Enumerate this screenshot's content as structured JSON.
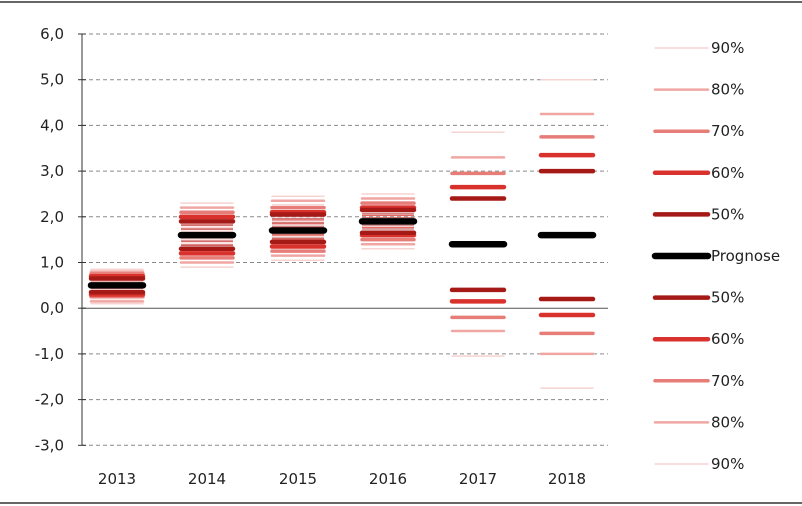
{
  "chart_data": {
    "type": "fan",
    "title": "",
    "xlabel": "",
    "ylabel": "",
    "categories": [
      "2013",
      "2014",
      "2015",
      "2016",
      "2017",
      "2018"
    ],
    "yticks": [
      "6,0",
      "5,0",
      "4,0",
      "3,0",
      "2,0",
      "1,0",
      "0,0",
      "-1,0",
      "-2,0",
      "-3,0"
    ],
    "ylim": [
      -3,
      6
    ],
    "grid": true,
    "legend_position": "right",
    "prognose": [
      0.5,
      1.6,
      1.7,
      1.9,
      1.4,
      1.6
    ],
    "bands": [
      {
        "label": "50%",
        "color": "#a51916",
        "lower": [
          0.35,
          1.3,
          1.45,
          1.65,
          0.4,
          0.2
        ],
        "upper": [
          0.65,
          1.9,
          2.05,
          2.15,
          2.4,
          3.0
        ]
      },
      {
        "label": "60%",
        "color": "#d9322d",
        "lower": [
          0.3,
          1.2,
          1.35,
          1.6,
          0.15,
          -0.15
        ],
        "upper": [
          0.7,
          2.0,
          2.1,
          2.2,
          2.65,
          3.35
        ]
      },
      {
        "label": "70%",
        "color": "#e67d79",
        "lower": [
          0.25,
          1.1,
          1.25,
          1.5,
          -0.2,
          -0.55
        ],
        "upper": [
          0.75,
          2.1,
          2.2,
          2.3,
          2.95,
          3.75
        ]
      },
      {
        "label": "80%",
        "color": "#f0a7a4",
        "lower": [
          0.15,
          1.0,
          1.15,
          1.4,
          -0.5,
          -1.0
        ],
        "upper": [
          0.8,
          2.2,
          2.35,
          2.4,
          3.3,
          4.25
        ]
      },
      {
        "label": "90%",
        "color": "#f7d3d1",
        "lower": [
          0.1,
          0.9,
          1.05,
          1.3,
          -1.05,
          -1.75
        ],
        "upper": [
          0.85,
          2.3,
          2.45,
          2.5,
          3.85,
          5.0
        ]
      }
    ],
    "legend": [
      {
        "label": "90%",
        "color": "#f7d3d1",
        "width": 1.5
      },
      {
        "label": "80%",
        "color": "#f0a7a4",
        "width": 2.5
      },
      {
        "label": "70%",
        "color": "#e67d79",
        "width": 3.5
      },
      {
        "label": "60%",
        "color": "#d9322d",
        "width": 4.5
      },
      {
        "label": "50%",
        "color": "#a51916",
        "width": 4.5
      },
      {
        "label": "Prognose",
        "color": "#000000",
        "width": 6.5
      },
      {
        "label": "50%",
        "color": "#a51916",
        "width": 4.5
      },
      {
        "label": "60%",
        "color": "#d9322d",
        "width": 4.5
      },
      {
        "label": "70%",
        "color": "#e67d79",
        "width": 3.5
      },
      {
        "label": "80%",
        "color": "#f0a7a4",
        "width": 2.5
      },
      {
        "label": "90%",
        "color": "#f7d3d1",
        "width": 1.5
      }
    ]
  }
}
